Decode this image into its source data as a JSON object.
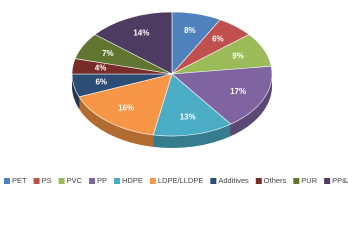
{
  "chart_data": {
    "type": "pie3d",
    "categories": [
      "PET",
      "PS",
      "PVC",
      "PP",
      "HDPE",
      "LDPE/LLDPE",
      "Additives",
      "Others",
      "PUR",
      "PP&A"
    ],
    "values": [
      8,
      6,
      9,
      17,
      13,
      16,
      6,
      4,
      7,
      14
    ],
    "value_labels": [
      "8%",
      "6%",
      "9%",
      "17%",
      "13%",
      "16%",
      "6%",
      "4%",
      "7%",
      "14%"
    ],
    "colors": [
      "#4f81bd",
      "#c0504d",
      "#9bbb59",
      "#8064a2",
      "#4bacc6",
      "#f79646",
      "#2c4d75",
      "#772c2a",
      "#5f7530",
      "#4d3b62"
    ],
    "legend": "bottom"
  }
}
